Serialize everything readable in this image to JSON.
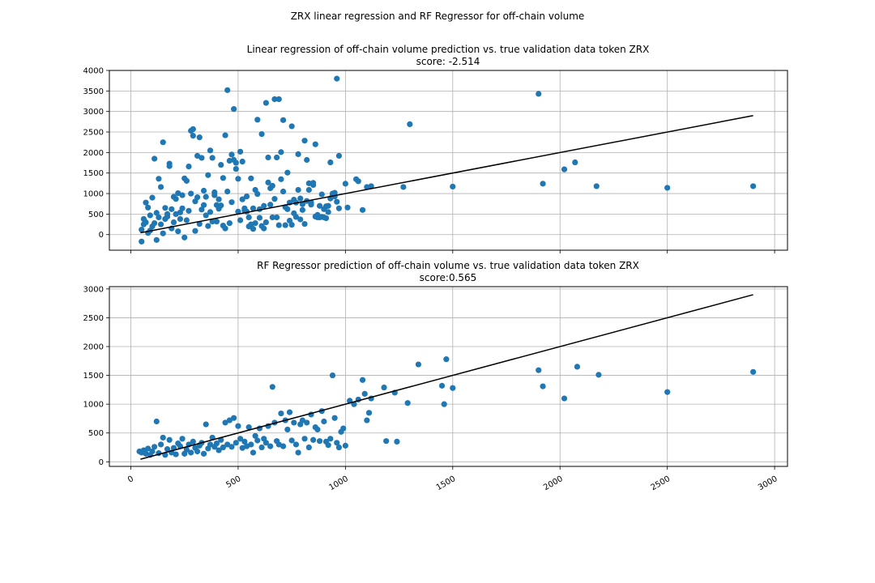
{
  "figure": {
    "suptitle": "ZRX linear regression and RF Regressor for off-chain volume"
  },
  "style": {
    "point_color": "#1f77b4",
    "line_color": "#000000",
    "grid_color": "#b0b0b0",
    "background": "#ffffff"
  },
  "chart_data": [
    {
      "type": "scatter",
      "title": "Linear regression of off-chain volume prediction vs. true validation data token ZRX",
      "subtitle": "score: -2.514",
      "xlabel": "",
      "ylabel": "",
      "xlim": [
        -100,
        3060
      ],
      "ylim": [
        -380,
        4000
      ],
      "xticks": [
        0,
        500,
        1000,
        1500,
        2000,
        2500,
        3000
      ],
      "xticklabels_visible": false,
      "yticks": [
        0,
        500,
        1000,
        1500,
        2000,
        2500,
        3000,
        3500,
        4000
      ],
      "grid": true,
      "legend": "none",
      "fit_line": {
        "x": [
          45,
          2900
        ],
        "y": [
          45,
          2900
        ]
      },
      "points": [
        [
          50,
          -170
        ],
        [
          50,
          120
        ],
        [
          60,
          380
        ],
        [
          60,
          250
        ],
        [
          70,
          300
        ],
        [
          70,
          780
        ],
        [
          80,
          660
        ],
        [
          80,
          40
        ],
        [
          90,
          100
        ],
        [
          90,
          470
        ],
        [
          100,
          200
        ],
        [
          100,
          900
        ],
        [
          110,
          1850
        ],
        [
          110,
          280
        ],
        [
          120,
          530
        ],
        [
          120,
          -130
        ],
        [
          130,
          420
        ],
        [
          130,
          1360
        ],
        [
          140,
          1160
        ],
        [
          140,
          250
        ],
        [
          150,
          2250
        ],
        [
          150,
          30
        ],
        [
          160,
          650
        ],
        [
          160,
          380
        ],
        [
          170,
          500
        ],
        [
          170,
          440
        ],
        [
          180,
          1730
        ],
        [
          180,
          1670
        ],
        [
          190,
          620
        ],
        [
          190,
          150
        ],
        [
          200,
          300
        ],
        [
          200,
          920
        ],
        [
          210,
          500
        ],
        [
          210,
          870
        ],
        [
          220,
          1010
        ],
        [
          220,
          80
        ],
        [
          230,
          380
        ],
        [
          230,
          540
        ],
        [
          240,
          640
        ],
        [
          240,
          960
        ],
        [
          250,
          -70
        ],
        [
          250,
          1370
        ],
        [
          260,
          350
        ],
        [
          260,
          1310
        ],
        [
          270,
          580
        ],
        [
          270,
          1660
        ],
        [
          280,
          2530
        ],
        [
          280,
          1000
        ],
        [
          290,
          2410
        ],
        [
          290,
          2570
        ],
        [
          300,
          90
        ],
        [
          300,
          810
        ],
        [
          310,
          1920
        ],
        [
          310,
          910
        ],
        [
          320,
          2370
        ],
        [
          320,
          260
        ],
        [
          330,
          1870
        ],
        [
          330,
          610
        ],
        [
          340,
          720
        ],
        [
          340,
          1070
        ],
        [
          350,
          920
        ],
        [
          350,
          470
        ],
        [
          360,
          210
        ],
        [
          360,
          1450
        ],
        [
          370,
          2050
        ],
        [
          370,
          550
        ],
        [
          380,
          1870
        ],
        [
          380,
          320
        ],
        [
          390,
          1030
        ],
        [
          390,
          960
        ],
        [
          400,
          320
        ],
        [
          400,
          720
        ],
        [
          410,
          860
        ],
        [
          410,
          630
        ],
        [
          420,
          710
        ],
        [
          420,
          1700
        ],
        [
          430,
          1380
        ],
        [
          430,
          220
        ],
        [
          440,
          2420
        ],
        [
          440,
          150
        ],
        [
          450,
          3520
        ],
        [
          450,
          1050
        ],
        [
          460,
          280
        ],
        [
          460,
          1800
        ],
        [
          470,
          790
        ],
        [
          470,
          1950
        ],
        [
          480,
          3060
        ],
        [
          480,
          1820
        ],
        [
          490,
          1750
        ],
        [
          490,
          1600
        ],
        [
          500,
          1360
        ],
        [
          500,
          560
        ],
        [
          510,
          2020
        ],
        [
          510,
          350
        ],
        [
          520,
          860
        ],
        [
          520,
          1780
        ],
        [
          530,
          640
        ],
        [
          530,
          590
        ],
        [
          540,
          560
        ],
        [
          540,
          930
        ],
        [
          550,
          200
        ],
        [
          550,
          420
        ],
        [
          560,
          250
        ],
        [
          560,
          1370
        ],
        [
          570,
          640
        ],
        [
          570,
          140
        ],
        [
          580,
          1090
        ],
        [
          580,
          280
        ],
        [
          590,
          990
        ],
        [
          590,
          2800
        ],
        [
          600,
          620
        ],
        [
          600,
          410
        ],
        [
          610,
          210
        ],
        [
          610,
          2450
        ],
        [
          620,
          700
        ],
        [
          620,
          150
        ],
        [
          630,
          3210
        ],
        [
          630,
          300
        ],
        [
          640,
          1270
        ],
        [
          640,
          1880
        ],
        [
          650,
          1130
        ],
        [
          650,
          730
        ],
        [
          660,
          420
        ],
        [
          660,
          1190
        ],
        [
          670,
          870
        ],
        [
          670,
          3300
        ],
        [
          680,
          1880
        ],
        [
          680,
          420
        ],
        [
          690,
          3300
        ],
        [
          690,
          230
        ],
        [
          700,
          2010
        ],
        [
          700,
          1350
        ],
        [
          710,
          1050
        ],
        [
          710,
          2790
        ],
        [
          720,
          670
        ],
        [
          720,
          230
        ],
        [
          730,
          620
        ],
        [
          730,
          1510
        ],
        [
          740,
          780
        ],
        [
          740,
          340
        ],
        [
          750,
          2640
        ],
        [
          750,
          240
        ],
        [
          760,
          520
        ],
        [
          760,
          850
        ],
        [
          770,
          780
        ],
        [
          770,
          430
        ],
        [
          780,
          1960
        ],
        [
          780,
          1090
        ],
        [
          790,
          370
        ],
        [
          790,
          880
        ],
        [
          800,
          740
        ],
        [
          800,
          600
        ],
        [
          810,
          2290
        ],
        [
          810,
          260
        ],
        [
          820,
          820
        ],
        [
          820,
          1820
        ],
        [
          830,
          1250
        ],
        [
          830,
          1090
        ],
        [
          840,
          730
        ],
        [
          840,
          780
        ],
        [
          850,
          1210
        ],
        [
          850,
          1260
        ],
        [
          860,
          440
        ],
        [
          860,
          2200
        ],
        [
          870,
          420
        ],
        [
          870,
          480
        ],
        [
          880,
          700
        ],
        [
          880,
          420
        ],
        [
          890,
          430
        ],
        [
          890,
          980
        ],
        [
          900,
          620
        ],
        [
          900,
          420
        ],
        [
          910,
          690
        ],
        [
          910,
          400
        ],
        [
          920,
          700
        ],
        [
          920,
          550
        ],
        [
          930,
          880
        ],
        [
          930,
          1760
        ],
        [
          940,
          960
        ],
        [
          940,
          1000
        ],
        [
          950,
          930
        ],
        [
          950,
          1020
        ],
        [
          960,
          800
        ],
        [
          960,
          3800
        ],
        [
          970,
          1920
        ],
        [
          970,
          640
        ],
        [
          1000,
          1240
        ],
        [
          1010,
          660
        ],
        [
          1050,
          1350
        ],
        [
          1060,
          1300
        ],
        [
          1080,
          600
        ],
        [
          1100,
          1160
        ],
        [
          1120,
          1180
        ],
        [
          1270,
          1160
        ],
        [
          1300,
          2690
        ],
        [
          1500,
          1170
        ],
        [
          1900,
          3430
        ],
        [
          1920,
          1240
        ],
        [
          2020,
          1590
        ],
        [
          2070,
          1760
        ],
        [
          2170,
          1180
        ],
        [
          2500,
          1140
        ],
        [
          2900,
          1180
        ]
      ]
    },
    {
      "type": "scatter",
      "title": "RF Regressor prediction of off-chain volume vs. true validation data token ZRX",
      "subtitle": "score:0.565",
      "xlabel": "",
      "ylabel": "",
      "xlim": [
        -100,
        3060
      ],
      "ylim": [
        -80,
        3040
      ],
      "xticks": [
        0,
        500,
        1000,
        1500,
        2000,
        2500,
        3000
      ],
      "xticklabels": [
        "0",
        "500",
        "1000",
        "1500",
        "2000",
        "2500",
        "3000"
      ],
      "yticks": [
        0,
        500,
        1000,
        1500,
        2000,
        2500,
        3000
      ],
      "grid": true,
      "legend": "none",
      "fit_line": {
        "x": [
          45,
          2900
        ],
        "y": [
          45,
          2900
        ]
      },
      "points": [
        [
          40,
          180
        ],
        [
          50,
          160
        ],
        [
          60,
          200
        ],
        [
          70,
          140
        ],
        [
          80,
          230
        ],
        [
          90,
          120
        ],
        [
          100,
          180
        ],
        [
          110,
          260
        ],
        [
          120,
          700
        ],
        [
          130,
          150
        ],
        [
          140,
          300
        ],
        [
          150,
          420
        ],
        [
          160,
          120
        ],
        [
          170,
          220
        ],
        [
          180,
          380
        ],
        [
          190,
          160
        ],
        [
          200,
          240
        ],
        [
          210,
          130
        ],
        [
          220,
          320
        ],
        [
          230,
          270
        ],
        [
          240,
          400
        ],
        [
          250,
          140
        ],
        [
          260,
          210
        ],
        [
          270,
          300
        ],
        [
          280,
          160
        ],
        [
          290,
          350
        ],
        [
          300,
          240
        ],
        [
          310,
          180
        ],
        [
          320,
          280
        ],
        [
          330,
          330
        ],
        [
          340,
          140
        ],
        [
          350,
          650
        ],
        [
          360,
          230
        ],
        [
          370,
          300
        ],
        [
          380,
          420
        ],
        [
          390,
          260
        ],
        [
          400,
          320
        ],
        [
          410,
          200
        ],
        [
          420,
          380
        ],
        [
          430,
          250
        ],
        [
          440,
          680
        ],
        [
          450,
          300
        ],
        [
          460,
          720
        ],
        [
          470,
          260
        ],
        [
          480,
          760
        ],
        [
          490,
          330
        ],
        [
          500,
          620
        ],
        [
          510,
          400
        ],
        [
          520,
          240
        ],
        [
          530,
          350
        ],
        [
          540,
          270
        ],
        [
          550,
          600
        ],
        [
          560,
          300
        ],
        [
          570,
          160
        ],
        [
          580,
          450
        ],
        [
          590,
          370
        ],
        [
          600,
          580
        ],
        [
          610,
          250
        ],
        [
          620,
          400
        ],
        [
          630,
          330
        ],
        [
          640,
          620
        ],
        [
          650,
          270
        ],
        [
          660,
          1300
        ],
        [
          670,
          680
        ],
        [
          680,
          360
        ],
        [
          690,
          300
        ],
        [
          700,
          840
        ],
        [
          710,
          270
        ],
        [
          720,
          720
        ],
        [
          730,
          560
        ],
        [
          740,
          860
        ],
        [
          750,
          370
        ],
        [
          760,
          680
        ],
        [
          770,
          300
        ],
        [
          780,
          160
        ],
        [
          790,
          650
        ],
        [
          800,
          720
        ],
        [
          810,
          400
        ],
        [
          820,
          680
        ],
        [
          830,
          250
        ],
        [
          840,
          820
        ],
        [
          850,
          380
        ],
        [
          860,
          600
        ],
        [
          870,
          560
        ],
        [
          880,
          360
        ],
        [
          890,
          880
        ],
        [
          900,
          700
        ],
        [
          910,
          350
        ],
        [
          920,
          290
        ],
        [
          930,
          400
        ],
        [
          940,
          1500
        ],
        [
          950,
          760
        ],
        [
          960,
          330
        ],
        [
          970,
          250
        ],
        [
          980,
          520
        ],
        [
          990,
          580
        ],
        [
          1000,
          280
        ],
        [
          1020,
          1060
        ],
        [
          1040,
          1000
        ],
        [
          1060,
          1080
        ],
        [
          1080,
          1420
        ],
        [
          1090,
          1180
        ],
        [
          1100,
          720
        ],
        [
          1110,
          850
        ],
        [
          1120,
          1100
        ],
        [
          1180,
          1290
        ],
        [
          1190,
          360
        ],
        [
          1230,
          1200
        ],
        [
          1240,
          350
        ],
        [
          1290,
          1020
        ],
        [
          1340,
          1690
        ],
        [
          1450,
          1320
        ],
        [
          1460,
          1000
        ],
        [
          1470,
          1780
        ],
        [
          1500,
          1280
        ],
        [
          1900,
          1590
        ],
        [
          1920,
          1310
        ],
        [
          2020,
          1100
        ],
        [
          2080,
          1650
        ],
        [
          2180,
          1510
        ],
        [
          2500,
          1210
        ],
        [
          2900,
          1560
        ]
      ]
    }
  ]
}
